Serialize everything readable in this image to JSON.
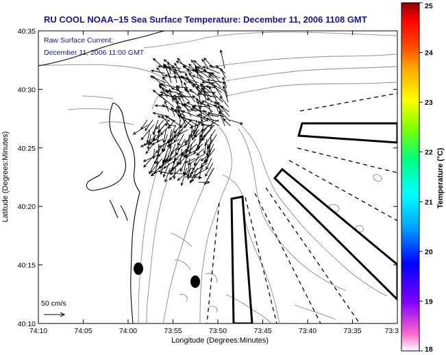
{
  "title": "RU COOL  NOAA−15  Sea Surface Temperature:  December 11, 2006 1108 GMT",
  "current_note": {
    "line1": "Raw Surface Current:",
    "line2": "December 11, 2006 11:00 GMT"
  },
  "scale_label": "50 cm/s",
  "x_axis": {
    "label": "Longitude (Degrees:Minutes)",
    "ticks": [
      "74:10",
      "74:05",
      "74:00",
      "73:55",
      "73:50",
      "73:45",
      "73:40",
      "73:35",
      "73:3"
    ]
  },
  "y_axis": {
    "label": "Latitude (Degrees:Minutes)",
    "ticks": [
      "40:35",
      "40:30",
      "40:25",
      "40:20",
      "40:15",
      "40:10"
    ]
  },
  "colorbar": {
    "label": "Temperature (°C)",
    "ticks": [
      "25",
      "24",
      "23",
      "22",
      "21",
      "20",
      "19",
      "18"
    ],
    "min": 18,
    "max": 25,
    "colors": [
      "#ff66cc",
      "#8000ff",
      "#0000ff",
      "#00aaff",
      "#00ffff",
      "#00ff80",
      "#80ff00",
      "#ffff00",
      "#ffaa00",
      "#ff5500",
      "#ff0000",
      "#8b0000"
    ]
  },
  "colors": {
    "title": "#1414a0",
    "coast": "#000000",
    "contour": "#888888"
  }
}
